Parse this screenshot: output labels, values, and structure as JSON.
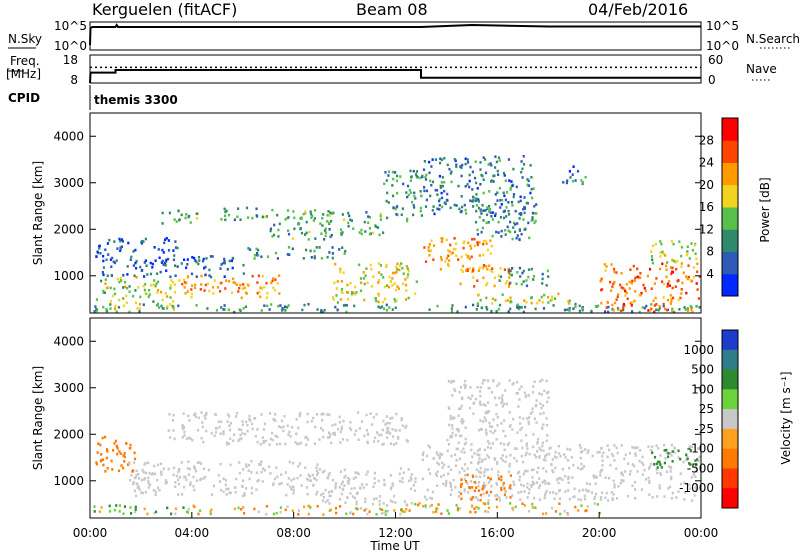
{
  "header": {
    "station": "Kerguelen (fitACF)",
    "beam": "Beam 08",
    "date": "04/Feb/2016"
  },
  "top_panels": {
    "nsky_label": "N.Sky",
    "nsearch_label": "N.Search",
    "noise_ticks": [
      "10^5",
      "10^0"
    ],
    "freq_label_1": "Freq.",
    "freq_label_2": "[MHz]",
    "freq_ticks": [
      "18",
      "8"
    ],
    "nave_label": "Nave",
    "nave_ticks": [
      "60",
      "0"
    ],
    "cpid_label": "CPID",
    "cpid_value": "themis 3300"
  },
  "chart_data": [
    {
      "type": "line",
      "title": "N.Sky / N.Search",
      "x_range": [
        0,
        24
      ],
      "series": [
        {
          "name": "N.Sky",
          "x": [
            0,
            0.02,
            0.1,
            1,
            1.05,
            1.1,
            5,
            9,
            12,
            13,
            14,
            15,
            16,
            18,
            20,
            22,
            24
          ],
          "y": [
            1,
            4.4,
            4.6,
            4.6,
            5.0,
            4.6,
            4.6,
            4.6,
            4.6,
            4.6,
            4.8,
            5.0,
            4.9,
            4.7,
            4.7,
            4.7,
            4.7
          ]
        }
      ],
      "ylim": [
        0,
        5.2
      ]
    },
    {
      "type": "line",
      "title": "Freq / Nave",
      "x_range": [
        0,
        24
      ],
      "series": [
        {
          "name": "Freq. [MHz]",
          "x": [
            0,
            0.02,
            1,
            1,
            13,
            13,
            24
          ],
          "y": [
            8,
            12,
            12,
            13,
            13,
            10,
            10
          ]
        },
        {
          "name": "Nave",
          "x": [
            0,
            24
          ],
          "y": [
            36,
            36
          ]
        }
      ],
      "ylim_freq": [
        8,
        18
      ],
      "ylim_nave": [
        0,
        60
      ]
    },
    {
      "type": "heatmap",
      "xlabel": "",
      "ylabel": "Slant Range [km]",
      "x_range": [
        0,
        24
      ],
      "ylim": [
        200,
        4500
      ],
      "y_ticks": [
        "1000",
        "2000",
        "3000",
        "4000"
      ],
      "colorbar_label": "Power [dB]",
      "colorbar_ticks": [
        "4",
        "8",
        "12",
        "16",
        "20",
        "24",
        "28"
      ],
      "colors": [
        "#0028ff",
        "#2f5ab8",
        "#2e8a6a",
        "#56c04a",
        "#f2d41f",
        "#ff9a00",
        "#ff4400",
        "#ff0000"
      ],
      "regions": [
        {
          "t": [
            0,
            24
          ],
          "r": [
            200,
            420
          ],
          "p": 12
        },
        {
          "t": [
            0.2,
            3.5
          ],
          "r": [
            300,
            1000
          ],
          "p": 18
        },
        {
          "t": [
            3.5,
            7.5
          ],
          "r": [
            550,
            1050
          ],
          "p": 24
        },
        {
          "t": [
            0.2,
            3.5
          ],
          "r": [
            1000,
            1850
          ],
          "p": 8
        },
        {
          "t": [
            3.5,
            6
          ],
          "r": [
            1000,
            1450
          ],
          "p": 8
        },
        {
          "t": [
            2.8,
            4.5
          ],
          "r": [
            2150,
            2450
          ],
          "p": 14
        },
        {
          "t": [
            5,
            7
          ],
          "r": [
            2200,
            2500
          ],
          "p": 14
        },
        {
          "t": [
            6,
            10
          ],
          "r": [
            1400,
            1650
          ],
          "p": 12
        },
        {
          "t": [
            7,
            9.5
          ],
          "r": [
            1800,
            2450
          ],
          "p": 14
        },
        {
          "t": [
            9.5,
            12.8
          ],
          "r": [
            450,
            1300
          ],
          "p": 20
        },
        {
          "t": [
            9,
            11.5
          ],
          "r": [
            1900,
            2400
          ],
          "p": 14
        },
        {
          "t": [
            11.5,
            13
          ],
          "r": [
            2200,
            3300
          ],
          "p": 12
        },
        {
          "t": [
            13,
            15.8
          ],
          "r": [
            1100,
            1850
          ],
          "p": 24
        },
        {
          "t": [
            14.5,
            16.5
          ],
          "r": [
            750,
            1200
          ],
          "p": 24
        },
        {
          "t": [
            13,
            17.5
          ],
          "r": [
            2300,
            3600
          ],
          "p": 10
        },
        {
          "t": [
            15,
            17.5
          ],
          "r": [
            1800,
            2500
          ],
          "p": 12
        },
        {
          "t": [
            16,
            18
          ],
          "r": [
            800,
            1200
          ],
          "p": 12
        },
        {
          "t": [
            18.5,
            19.5
          ],
          "r": [
            3000,
            3400
          ],
          "p": 10
        },
        {
          "t": [
            15,
            19
          ],
          "r": [
            400,
            650
          ],
          "p": 20
        },
        {
          "t": [
            20,
            24
          ],
          "r": [
            200,
            1300
          ],
          "p": 26
        },
        {
          "t": [
            22,
            24
          ],
          "r": [
            1300,
            1800
          ],
          "p": 18
        }
      ]
    },
    {
      "type": "heatmap",
      "xlabel": "Time UT",
      "ylabel": "Slant Range [km]",
      "x_range": [
        0,
        24
      ],
      "ylim": [
        200,
        4500
      ],
      "x_ticks": [
        "00:00",
        "04:00",
        "08:00",
        "12:00",
        "16:00",
        "20:00",
        "00:00"
      ],
      "y_ticks": [
        "1000",
        "2000",
        "3000",
        "4000"
      ],
      "colorbar_label": "Velocity [m s⁻¹]",
      "colorbar_ticks": [
        "1000",
        "500",
        "100",
        "25",
        "-25",
        "-100",
        "-500",
        "-1000"
      ],
      "colors": [
        "#1e3ccc",
        "#2f7d8a",
        "#2f8a2f",
        "#6ad23a",
        "#c8c8c8",
        "#ffa020",
        "#ff7a00",
        "#ff3800",
        "#ff0000"
      ],
      "regions": [
        {
          "t": [
            0,
            4
          ],
          "r": [
            300,
            500
          ],
          "v": 60
        },
        {
          "t": [
            4,
            12
          ],
          "r": [
            300,
            500
          ],
          "v": -60
        },
        {
          "t": [
            12,
            20
          ],
          "r": [
            300,
            550
          ],
          "v": -50
        },
        {
          "t": [
            0.2,
            1.8
          ],
          "r": [
            1200,
            2000
          ],
          "v": -300
        },
        {
          "t": [
            1.5,
            9
          ],
          "r": [
            700,
            1450
          ],
          "v": 0
        },
        {
          "t": [
            3,
            12.5
          ],
          "r": [
            1800,
            2500
          ],
          "v": 0
        },
        {
          "t": [
            9,
            12.8
          ],
          "r": [
            500,
            1300
          ],
          "v": 0
        },
        {
          "t": [
            13,
            24
          ],
          "r": [
            600,
            1800
          ],
          "v": 0
        },
        {
          "t": [
            14,
            18
          ],
          "r": [
            1800,
            3200
          ],
          "v": 0
        },
        {
          "t": [
            14.5,
            16.5
          ],
          "r": [
            600,
            1200
          ],
          "v": -300
        },
        {
          "t": [
            22,
            24
          ],
          "r": [
            1300,
            1700
          ],
          "v": 300
        }
      ]
    }
  ]
}
